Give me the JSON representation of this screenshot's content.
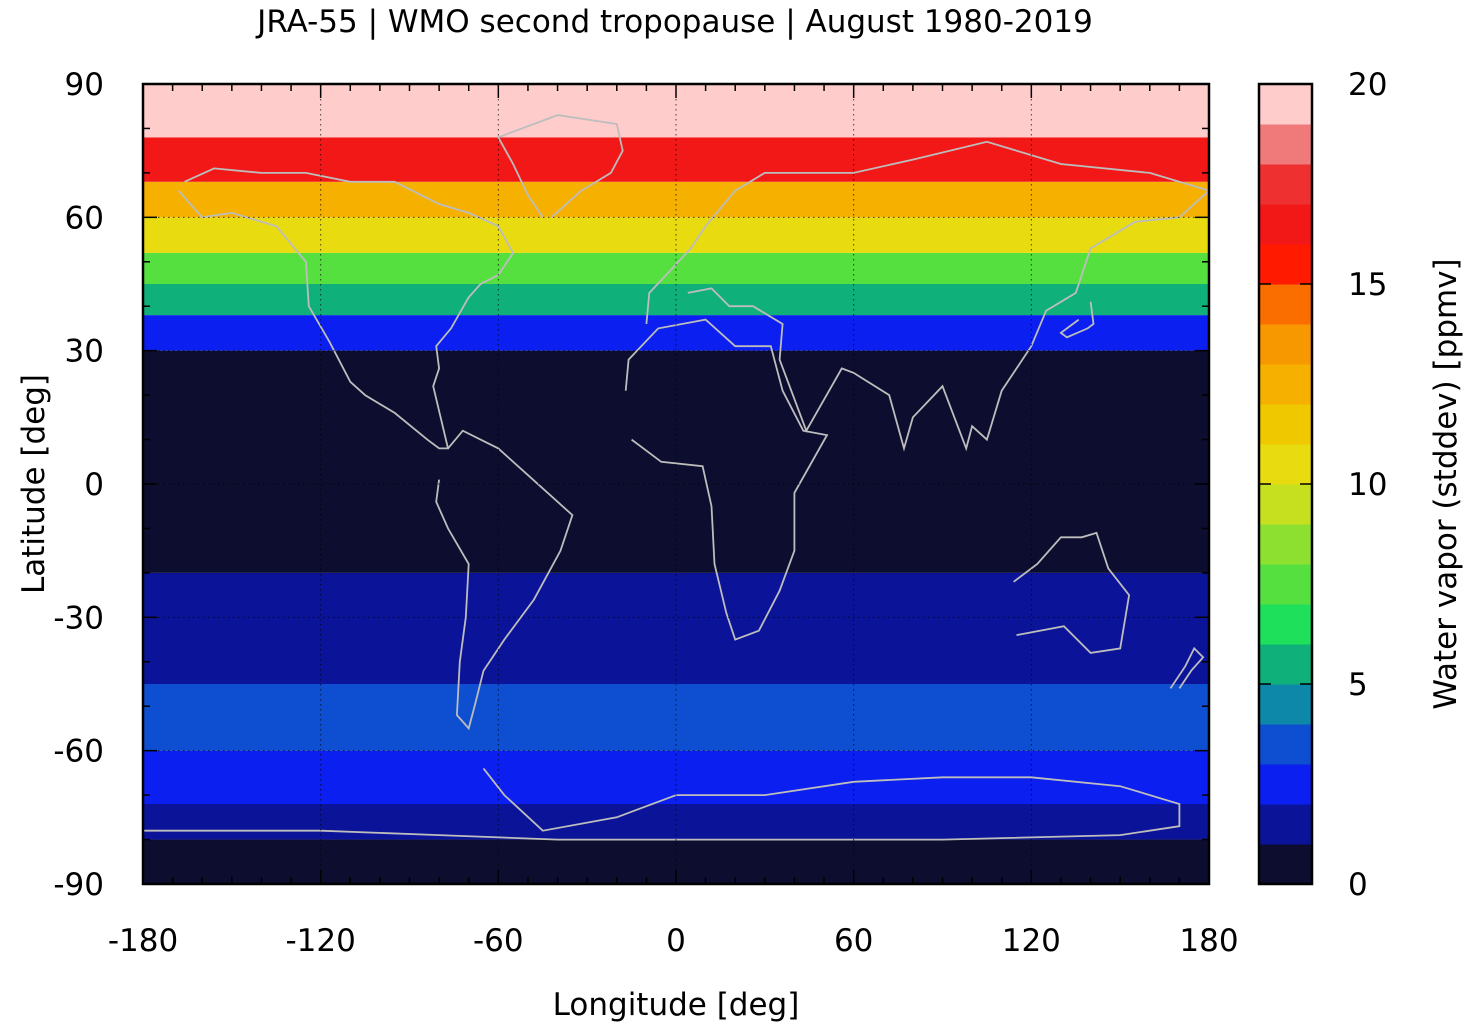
{
  "chart_data": {
    "type": "heatmap",
    "title": "JRA-55 | WMO second tropopause | August 1980-2019",
    "xlabel": "Longitude [deg]",
    "ylabel": "Latitude [deg]",
    "colorbar_label": "Water vapor (stddev) [ppmv]",
    "xlim": [
      -180,
      180
    ],
    "ylim": [
      -90,
      90
    ],
    "xticks": [
      -180,
      -120,
      -60,
      0,
      60,
      120,
      180
    ],
    "yticks": [
      90,
      60,
      30,
      0,
      -30,
      -60,
      -90
    ],
    "colorbar_range": [
      0,
      20
    ],
    "colorbar_ticks": [
      20,
      15,
      10,
      5,
      0
    ],
    "colorbar_levels": [
      {
        "range": [
          0,
          1
        ],
        "color": "#0d0d2f"
      },
      {
        "range": [
          1,
          2
        ],
        "color": "#0b1499"
      },
      {
        "range": [
          2,
          3
        ],
        "color": "#0a1ff0"
      },
      {
        "range": [
          3,
          4
        ],
        "color": "#0d4fd0"
      },
      {
        "range": [
          4,
          5
        ],
        "color": "#0d88a8"
      },
      {
        "range": [
          5,
          6
        ],
        "color": "#10b07a"
      },
      {
        "range": [
          6,
          7
        ],
        "color": "#1ee05a"
      },
      {
        "range": [
          7,
          8
        ],
        "color": "#55e040"
      },
      {
        "range": [
          8,
          9
        ],
        "color": "#8de030"
      },
      {
        "range": [
          9,
          10
        ],
        "color": "#c6e020"
      },
      {
        "range": [
          10,
          11
        ],
        "color": "#e8dc10"
      },
      {
        "range": [
          11,
          12
        ],
        "color": "#f0c800"
      },
      {
        "range": [
          12,
          13
        ],
        "color": "#f5b000"
      },
      {
        "range": [
          13,
          14
        ],
        "color": "#f89800"
      },
      {
        "range": [
          14,
          15
        ],
        "color": "#fa6e00"
      },
      {
        "range": [
          15,
          16
        ],
        "color": "#ff1a00"
      },
      {
        "range": [
          16,
          17
        ],
        "color": "#f21818"
      },
      {
        "range": [
          17,
          18
        ],
        "color": "#ee3030"
      },
      {
        "range": [
          18,
          19
        ],
        "color": "#f07a7a"
      },
      {
        "range": [
          19,
          20
        ],
        "color": "#ffcccc"
      }
    ],
    "zonal_profile": [
      {
        "lat": [
          -90,
          -80
        ],
        "value": 0.5
      },
      {
        "lat": [
          -80,
          -72
        ],
        "value": 1.5
      },
      {
        "lat": [
          -72,
          -60
        ],
        "value": 2.3
      },
      {
        "lat": [
          -60,
          -45
        ],
        "value": 3.0
      },
      {
        "lat": [
          -45,
          -20
        ],
        "value": 1.8
      },
      {
        "lat": [
          -20,
          30
        ],
        "value": 0.5
      },
      {
        "lat": [
          30,
          38
        ],
        "value": 2.5
      },
      {
        "lat": [
          38,
          45
        ],
        "value": 5.5
      },
      {
        "lat": [
          45,
          52
        ],
        "value": 7.5
      },
      {
        "lat": [
          52,
          60
        ],
        "value": 10.5
      },
      {
        "lat": [
          60,
          68
        ],
        "value": 12.5
      },
      {
        "lat": [
          68,
          78
        ],
        "value": 16.5
      },
      {
        "lat": [
          78,
          90
        ],
        "value": 19.5
      }
    ],
    "grid": true,
    "map_overlay": "coastlines"
  }
}
